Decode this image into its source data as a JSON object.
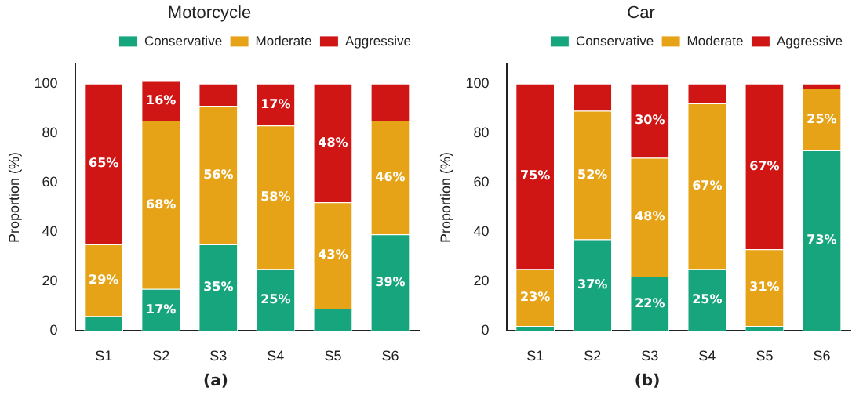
{
  "chart_data": [
    {
      "type": "bar",
      "title": "Motorcycle",
      "ylabel": "Proportion (%)",
      "categories": [
        "S1",
        "S2",
        "S3",
        "S4",
        "S5",
        "S6"
      ],
      "stacked": true,
      "ylim": [
        0,
        108
      ],
      "yticks": [
        0,
        20,
        40,
        60,
        80,
        100
      ],
      "legend": "top right",
      "grid": false,
      "annotations": [
        "(a)"
      ],
      "series": [
        {
          "name": "Conservative",
          "color": "#17a57d",
          "values": [
            6,
            17,
            35,
            25,
            9,
            39
          ],
          "value_labels": [
            null,
            "17%",
            "35%",
            "25%",
            null,
            "39%"
          ]
        },
        {
          "name": "Moderate",
          "color": "#e6a317",
          "values": [
            29,
            68,
            56,
            58,
            43,
            46
          ],
          "value_labels": [
            "29%",
            "68%",
            "56%",
            "58%",
            "43%",
            "46%"
          ]
        },
        {
          "name": "Aggressive",
          "color": "#d01515",
          "values": [
            65,
            16,
            9,
            17,
            48,
            15
          ],
          "value_labels": [
            "65%",
            "16%",
            null,
            "17%",
            "48%",
            null
          ]
        }
      ]
    },
    {
      "type": "bar",
      "title": "Car",
      "ylabel": "Proportion (%)",
      "categories": [
        "S1",
        "S2",
        "S3",
        "S4",
        "S5",
        "S6"
      ],
      "stacked": true,
      "ylim": [
        0,
        108
      ],
      "yticks": [
        0,
        20,
        40,
        60,
        80,
        100
      ],
      "legend": "top right",
      "grid": false,
      "annotations": [
        "(b)"
      ],
      "series": [
        {
          "name": "Conservative",
          "color": "#17a57d",
          "values": [
            2,
            37,
            22,
            25,
            2,
            73
          ],
          "value_labels": [
            null,
            "37%",
            "22%",
            "25%",
            null,
            "73%"
          ]
        },
        {
          "name": "Moderate",
          "color": "#e6a317",
          "values": [
            23,
            52,
            48,
            67,
            31,
            25
          ],
          "value_labels": [
            "23%",
            "52%",
            "48%",
            "67%",
            "31%",
            "25%"
          ]
        },
        {
          "name": "Aggressive",
          "color": "#d01515",
          "values": [
            75,
            11,
            30,
            8,
            67,
            2
          ],
          "value_labels": [
            "75%",
            null,
            "30%",
            null,
            "67%",
            null
          ]
        }
      ]
    }
  ]
}
